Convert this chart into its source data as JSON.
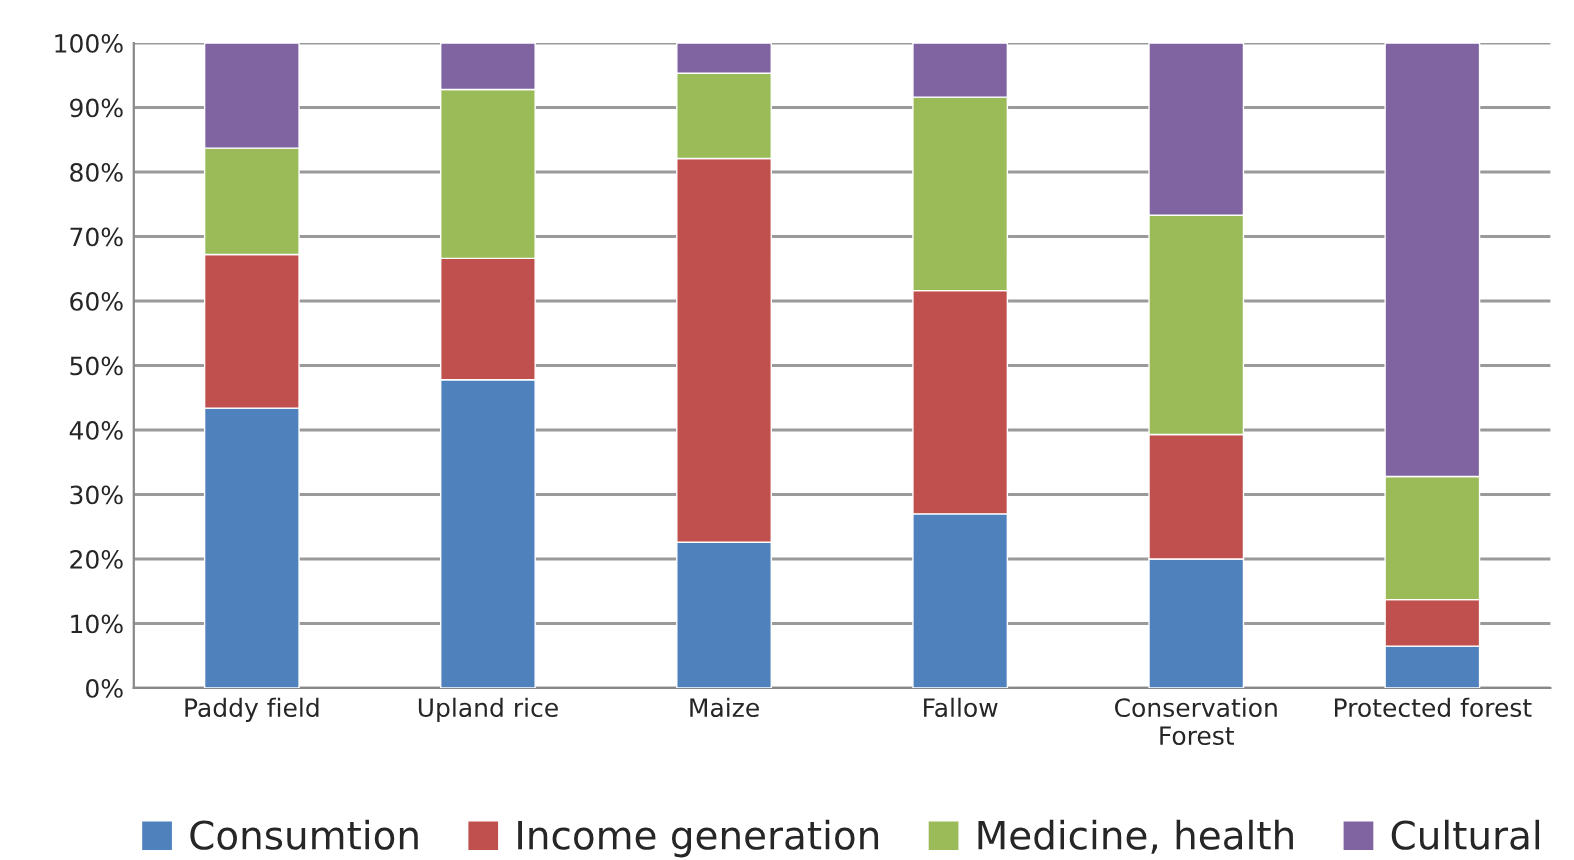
{
  "chart_data": {
    "type": "bar",
    "stacked": true,
    "categories": [
      "Paddy field",
      "Upland rice",
      "Maize",
      "Fallow",
      "Conservation\nForest",
      "Protected forest"
    ],
    "series": [
      {
        "name": "Consumtion",
        "color": "#4f81bd",
        "values": [
          43.4,
          47.8,
          22.6,
          27.0,
          20.0,
          6.5
        ]
      },
      {
        "name": "Income generation",
        "color": "#c0504d",
        "values": [
          23.8,
          18.8,
          59.5,
          34.6,
          19.3,
          7.2
        ]
      },
      {
        "name": "Medicine, health",
        "color": "#9bbb59",
        "values": [
          16.5,
          26.2,
          13.2,
          30.0,
          34.0,
          19.1
        ]
      },
      {
        "name": "Cultural",
        "color": "#8064a2",
        "values": [
          16.3,
          7.2,
          4.7,
          8.4,
          26.7,
          67.2
        ]
      }
    ],
    "ylim": [
      0,
      100
    ],
    "yticks": [
      {
        "value": 0,
        "label": "0%"
      },
      {
        "value": 10,
        "label": "10%"
      },
      {
        "value": 20,
        "label": "20%"
      },
      {
        "value": 30,
        "label": "30%"
      },
      {
        "value": 40,
        "label": "40%"
      },
      {
        "value": 50,
        "label": "50%"
      },
      {
        "value": 60,
        "label": "60%"
      },
      {
        "value": 70,
        "label": "70%"
      },
      {
        "value": 80,
        "label": "80%"
      },
      {
        "value": 90,
        "label": "90%"
      },
      {
        "value": 100,
        "label": "100%"
      }
    ],
    "grid": "y",
    "legend": "bottom"
  }
}
